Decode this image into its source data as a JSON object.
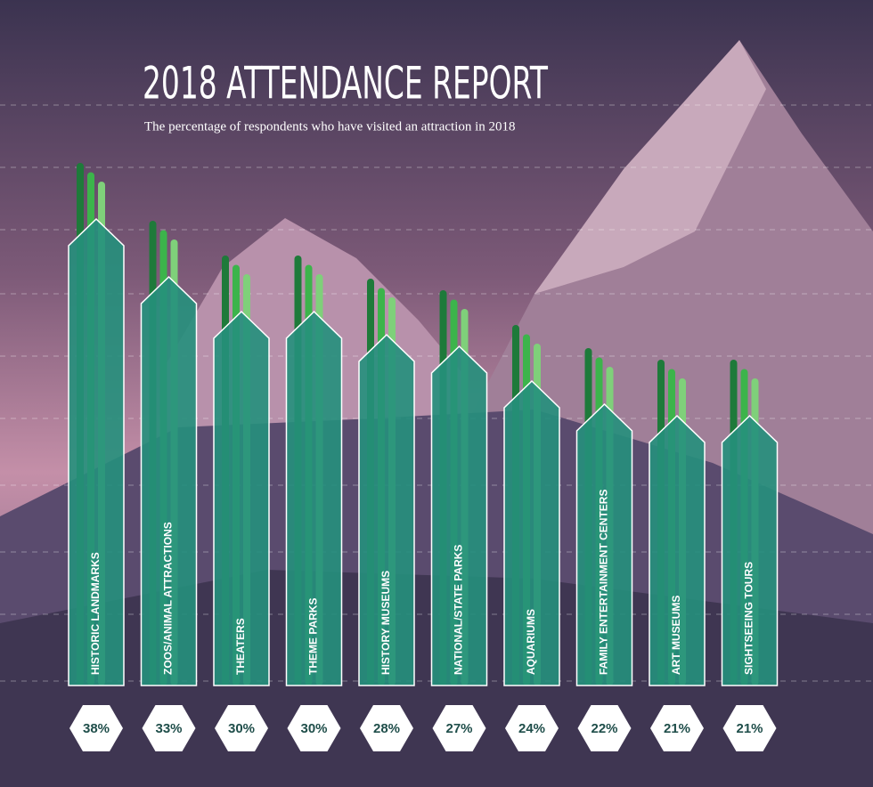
{
  "chart_data": {
    "type": "bar",
    "title": "2018 ATTENDANCE REPORT",
    "subtitle": "The percentage of respondents who have visited an attraction in 2018",
    "categories": [
      "HISTORIC LANDMARKS",
      "ZOOS/ANIMAL ATTRACTIONS",
      "THEATERS",
      "THEME PARKS",
      "HISTORY MUSEUMS",
      "NATIONAL/STATE PARKS",
      "AQUARIUMS",
      "FAMILY ENTERTAINMENT CENTERS",
      "ART MUSEUMS",
      "SIGHTSEEING TOURS"
    ],
    "values": [
      38,
      33,
      30,
      30,
      28,
      27,
      24,
      22,
      21,
      21
    ],
    "value_labels": [
      "38%",
      "33%",
      "30%",
      "30%",
      "28%",
      "27%",
      "24%",
      "22%",
      "21%",
      "21%"
    ],
    "color": "#25907c"
  }
}
